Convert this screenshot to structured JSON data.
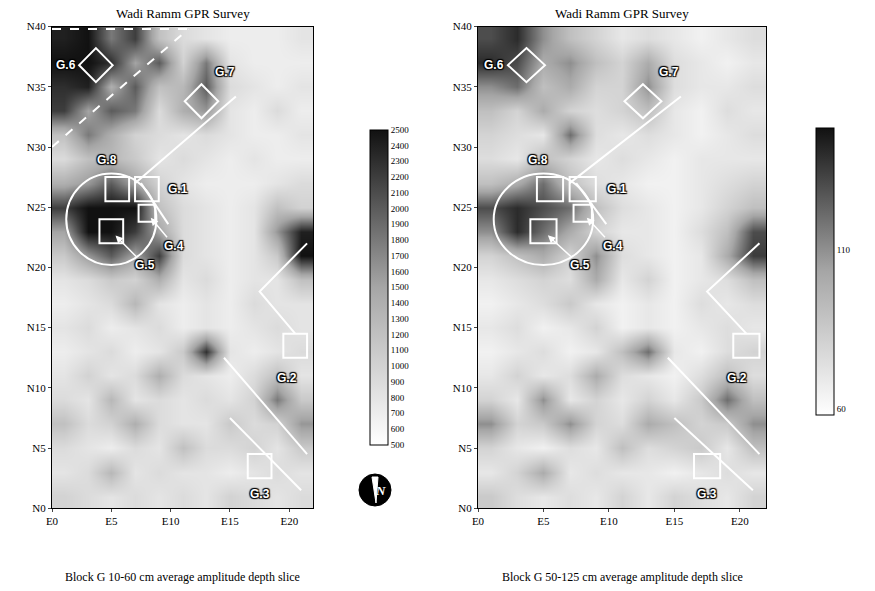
{
  "chart_data": [
    {
      "type": "heatmap",
      "title": "Wadi Ramm GPR Survey",
      "caption": "Block G 10-60 cm average amplitude depth slice",
      "x": [
        1,
        3,
        5,
        7,
        9,
        11,
        13,
        15,
        17,
        19,
        21
      ],
      "y": [
        1,
        3,
        5,
        7,
        9,
        11,
        13,
        15,
        17,
        19,
        21,
        23,
        25,
        27,
        29,
        31,
        33,
        35,
        37,
        39
      ],
      "z": [
        [
          1000,
          900,
          800,
          900,
          800,
          900,
          800,
          1000,
          900,
          800,
          900
        ],
        [
          800,
          900,
          1300,
          800,
          900,
          800,
          800,
          700,
          800,
          900,
          800
        ],
        [
          900,
          800,
          700,
          900,
          800,
          1200,
          900,
          900,
          1000,
          800,
          1100
        ],
        [
          1200,
          900,
          1000,
          1400,
          900,
          800,
          800,
          1100,
          900,
          1000,
          1600
        ],
        [
          900,
          800,
          1300,
          800,
          900,
          800,
          900,
          800,
          1000,
          1800,
          1100
        ],
        [
          800,
          1000,
          800,
          900,
          1400,
          900,
          800,
          700,
          900,
          1200,
          800
        ],
        [
          700,
          800,
          900,
          700,
          800,
          1100,
          2300,
          800,
          700,
          800,
          900
        ],
        [
          800,
          900,
          700,
          800,
          900,
          700,
          800,
          700,
          800,
          900,
          800
        ],
        [
          700,
          800,
          900,
          1300,
          800,
          700,
          800,
          700,
          900,
          800,
          800
        ],
        [
          800,
          900,
          1100,
          1000,
          1400,
          800,
          900,
          700,
          800,
          800,
          1200
        ],
        [
          1100,
          1600,
          2000,
          1500,
          2200,
          900,
          800,
          700,
          800,
          1100,
          2500
        ],
        [
          1500,
          2500,
          2500,
          2200,
          1500,
          900,
          800,
          700,
          800,
          1600,
          2400
        ],
        [
          2200,
          2500,
          2500,
          2500,
          1200,
          900,
          800,
          700,
          800,
          1200,
          1000
        ],
        [
          1400,
          1600,
          2000,
          1500,
          1000,
          800,
          700,
          700,
          700,
          800,
          900
        ],
        [
          900,
          1200,
          1300,
          1100,
          800,
          900,
          800,
          700,
          800,
          700,
          700
        ],
        [
          1200,
          1800,
          1400,
          1000,
          900,
          800,
          900,
          800,
          700,
          700,
          800
        ],
        [
          2200,
          1500,
          2000,
          1800,
          900,
          1400,
          1600,
          800,
          700,
          900,
          700
        ],
        [
          2300,
          2400,
          1400,
          2000,
          1200,
          1300,
          2000,
          900,
          800,
          700,
          800
        ],
        [
          2500,
          2500,
          2300,
          1500,
          2000,
          1000,
          1800,
          800,
          700,
          700,
          700
        ],
        [
          2400,
          2500,
          1800,
          2200,
          1200,
          900,
          800,
          700,
          700,
          700,
          800
        ]
      ],
      "zlim": [
        500,
        2500
      ],
      "zticks": [
        500,
        600,
        700,
        800,
        900,
        1000,
        1100,
        1200,
        1300,
        1400,
        1500,
        1600,
        1700,
        1800,
        1900,
        2000,
        2100,
        2200,
        2300,
        2400,
        2500
      ],
      "xlim": [
        0,
        22
      ],
      "xticks": [
        {
          "value": 0,
          "label": "E0"
        },
        {
          "value": 5,
          "label": "E5"
        },
        {
          "value": 10,
          "label": "E10"
        },
        {
          "value": 15,
          "label": "E15"
        },
        {
          "value": 20,
          "label": "E20"
        }
      ],
      "ylim": [
        0,
        40
      ],
      "yticks": [
        {
          "value": 0,
          "label": "N0"
        },
        {
          "value": 5,
          "label": "N5"
        },
        {
          "value": 10,
          "label": "N10"
        },
        {
          "value": 15,
          "label": "N15"
        },
        {
          "value": 20,
          "label": "N20"
        },
        {
          "value": 25,
          "label": "N25"
        },
        {
          "value": 30,
          "label": "N30"
        },
        {
          "value": 35,
          "label": "N35"
        },
        {
          "value": 40,
          "label": "N40"
        }
      ],
      "squares": [
        {
          "label": "G.6",
          "x": 3.7,
          "y": 36.8,
          "size": 2,
          "rotated": true,
          "label_at": [
            1.2,
            36.8
          ],
          "arrow": false
        },
        {
          "label": "G.7",
          "x": 12.6,
          "y": 33.8,
          "size": 2,
          "rotated": true,
          "label_at": [
            14.6,
            36.2
          ],
          "arrow": false
        },
        {
          "label": "G.8",
          "x": 5.5,
          "y": 26.5,
          "size": 2,
          "rotated": false,
          "label_at": [
            4.6,
            28.9
          ],
          "arrow": false
        },
        {
          "label": "G.1",
          "x": 8,
          "y": 26.5,
          "size": 2,
          "rotated": false,
          "label_at": [
            10.6,
            26.5
          ],
          "arrow": false
        },
        {
          "label": "G.4",
          "x": 8,
          "y": 24.5,
          "size": 1.4,
          "rotated": false,
          "label_at": [
            10.3,
            21.8
          ],
          "arrow": true
        },
        {
          "label": "G.5",
          "x": 5,
          "y": 23,
          "size": 2,
          "rotated": false,
          "label_at": [
            7.8,
            20.2
          ],
          "arrow": true
        },
        {
          "label": "G.2",
          "x": 20.5,
          "y": 13.5,
          "size": 2,
          "rotated": false,
          "label_at": [
            19.8,
            10.8
          ],
          "arrow": false
        },
        {
          "label": "G.3",
          "x": 17.5,
          "y": 3.5,
          "size": 2,
          "rotated": false,
          "label_at": [
            17.5,
            1.2
          ],
          "arrow": false
        }
      ],
      "circles": [
        {
          "x": 5,
          "y": 24,
          "r": 3.8
        }
      ],
      "lines": [
        [
          [
            15.5,
            34.2
          ],
          [
            7,
            27
          ]
        ],
        [
          [
            7.5,
            27
          ],
          [
            9.8,
            23.6
          ]
        ],
        [
          [
            21.5,
            22
          ],
          [
            17.5,
            18
          ],
          [
            20.5,
            14.5
          ]
        ],
        [
          [
            14.5,
            12.5
          ],
          [
            21.5,
            4.5
          ]
        ],
        [
          [
            15,
            7.5
          ],
          [
            21,
            1.5
          ]
        ]
      ],
      "dashed_lines": [
        [
          [
            0,
            30
          ],
          [
            11.5,
            39.8
          ]
        ],
        [
          [
            0,
            39.8
          ],
          [
            11.5,
            39.8
          ]
        ]
      ]
    },
    {
      "type": "heatmap",
      "title": "Wadi Ramm GPR Survey",
      "caption": "Block G 50-125 cm average amplitude depth slice",
      "x": [
        1,
        3,
        5,
        7,
        9,
        11,
        13,
        15,
        17,
        19,
        21
      ],
      "y": [
        1,
        3,
        5,
        7,
        9,
        11,
        13,
        15,
        17,
        19,
        21,
        23,
        25,
        27,
        29,
        31,
        33,
        35,
        37,
        39
      ],
      "z": [
        [
          85,
          75,
          70,
          75,
          70,
          80,
          70,
          80,
          75,
          70,
          80
        ],
        [
          70,
          80,
          100,
          70,
          75,
          70,
          70,
          65,
          70,
          75,
          70
        ],
        [
          80,
          70,
          65,
          75,
          70,
          90,
          75,
          80,
          85,
          70,
          90
        ],
        [
          110,
          80,
          85,
          110,
          80,
          75,
          100,
          90,
          80,
          85,
          110
        ],
        [
          80,
          70,
          110,
          70,
          80,
          70,
          80,
          70,
          85,
          120,
          90
        ],
        [
          70,
          80,
          70,
          75,
          100,
          75,
          70,
          65,
          75,
          90,
          75
        ],
        [
          65,
          70,
          75,
          65,
          70,
          90,
          120,
          70,
          65,
          75,
          80
        ],
        [
          70,
          75,
          65,
          70,
          80,
          65,
          70,
          65,
          70,
          75,
          70
        ],
        [
          65,
          70,
          75,
          85,
          70,
          65,
          70,
          65,
          75,
          70,
          75
        ],
        [
          70,
          75,
          80,
          75,
          100,
          70,
          80,
          65,
          70,
          75,
          90
        ],
        [
          80,
          90,
          100,
          80,
          110,
          75,
          70,
          65,
          70,
          100,
          135
        ],
        [
          110,
          140,
          120,
          100,
          80,
          70,
          70,
          65,
          75,
          90,
          130
        ],
        [
          130,
          140,
          130,
          120,
          90,
          75,
          70,
          65,
          70,
          80,
          90
        ],
        [
          90,
          100,
          120,
          90,
          75,
          70,
          65,
          65,
          70,
          75,
          80
        ],
        [
          75,
          70,
          90,
          80,
          70,
          75,
          70,
          65,
          70,
          70,
          70
        ],
        [
          80,
          75,
          70,
          120,
          75,
          70,
          75,
          70,
          65,
          70,
          75
        ],
        [
          90,
          80,
          100,
          80,
          75,
          80,
          90,
          70,
          65,
          75,
          70
        ],
        [
          110,
          120,
          90,
          100,
          80,
          80,
          110,
          75,
          70,
          70,
          75
        ],
        [
          140,
          130,
          100,
          110,
          90,
          80,
          100,
          75,
          70,
          65,
          70
        ],
        [
          130,
          140,
          110,
          90,
          80,
          70,
          75,
          70,
          65,
          70,
          75
        ]
      ],
      "zlim": [
        58,
        148
      ],
      "zticks": [
        60,
        110
      ],
      "xlim": [
        0,
        22
      ],
      "xticks": [
        {
          "value": 0,
          "label": "E0"
        },
        {
          "value": 5,
          "label": "E5"
        },
        {
          "value": 10,
          "label": "E10"
        },
        {
          "value": 15,
          "label": "E15"
        },
        {
          "value": 20,
          "label": "E20"
        }
      ],
      "ylim": [
        0,
        40
      ],
      "yticks": [
        {
          "value": 0,
          "label": "N0"
        },
        {
          "value": 5,
          "label": "N5"
        },
        {
          "value": 10,
          "label": "N10"
        },
        {
          "value": 15,
          "label": "N15"
        },
        {
          "value": 20,
          "label": "N20"
        },
        {
          "value": 25,
          "label": "N25"
        },
        {
          "value": 30,
          "label": "N30"
        },
        {
          "value": 35,
          "label": "N35"
        },
        {
          "value": 40,
          "label": "N40"
        }
      ],
      "squares": [
        {
          "label": "G.6",
          "x": 3.7,
          "y": 36.8,
          "size": 2,
          "rotated": true,
          "label_at": [
            1.2,
            36.8
          ],
          "arrow": false
        },
        {
          "label": "G.7",
          "x": 12.6,
          "y": 33.8,
          "size": 2,
          "rotated": true,
          "label_at": [
            14.6,
            36.2
          ],
          "arrow": false
        },
        {
          "label": "G.8",
          "x": 5.5,
          "y": 26.5,
          "size": 2,
          "rotated": false,
          "label_at": [
            4.6,
            28.9
          ],
          "arrow": false
        },
        {
          "label": "G.1",
          "x": 8,
          "y": 26.5,
          "size": 2,
          "rotated": false,
          "label_at": [
            10.6,
            26.5
          ],
          "arrow": false
        },
        {
          "label": "G.4",
          "x": 8,
          "y": 24.5,
          "size": 1.4,
          "rotated": false,
          "label_at": [
            10.3,
            21.8
          ],
          "arrow": true
        },
        {
          "label": "G.5",
          "x": 5,
          "y": 23,
          "size": 2,
          "rotated": false,
          "label_at": [
            7.8,
            20.2
          ],
          "arrow": true
        },
        {
          "label": "G.2",
          "x": 20.5,
          "y": 13.5,
          "size": 2,
          "rotated": false,
          "label_at": [
            19.8,
            10.8
          ],
          "arrow": false
        },
        {
          "label": "G.3",
          "x": 17.5,
          "y": 3.5,
          "size": 2,
          "rotated": false,
          "label_at": [
            17.5,
            1.2
          ],
          "arrow": false
        }
      ],
      "circles": [
        {
          "x": 5,
          "y": 24,
          "r": 3.8
        }
      ],
      "lines": [
        [
          [
            15.5,
            34.2
          ],
          [
            7,
            27
          ]
        ],
        [
          [
            7.5,
            27
          ],
          [
            9.8,
            23.6
          ]
        ],
        [
          [
            21.5,
            22
          ],
          [
            17.5,
            18
          ],
          [
            20.5,
            14.5
          ]
        ],
        [
          [
            14.5,
            12.5
          ],
          [
            21.5,
            4.5
          ]
        ],
        [
          [
            15,
            7.5
          ],
          [
            21,
            1.5
          ]
        ]
      ],
      "dashed_lines": []
    }
  ],
  "north_arrow": {
    "label": "N"
  }
}
